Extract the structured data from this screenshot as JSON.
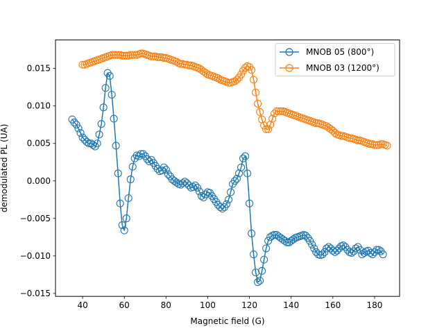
{
  "chart_data": {
    "type": "line",
    "title": "",
    "xlabel": "Magnetic field (G)",
    "ylabel": "demodulated PL (UA)",
    "xlim": [
      27,
      192
    ],
    "ylim": [
      -0.0154,
      0.0188
    ],
    "xticks": [
      40,
      60,
      80,
      100,
      120,
      140,
      160,
      180
    ],
    "xtick_labels": [
      "40",
      "60",
      "80",
      "100",
      "120",
      "140",
      "160",
      "180"
    ],
    "yticks": [
      -0.015,
      -0.01,
      -0.005,
      0.0,
      0.005,
      0.01,
      0.015
    ],
    "ytick_labels": [
      "−0.015",
      "−0.010",
      "−0.005",
      "0.000",
      "0.005",
      "0.010",
      "0.015"
    ],
    "grid": false,
    "legend_position": "top-right",
    "series": [
      {
        "name": "MNOB 05 (800°)",
        "color": "#1f77b4",
        "marker": "open-circle",
        "x": [
          35,
          36,
          37,
          38,
          39,
          40,
          41,
          42,
          43,
          44,
          45,
          46,
          47,
          48,
          49,
          50,
          51,
          52,
          53,
          54,
          55,
          56,
          57,
          58,
          59,
          60,
          61,
          62,
          63,
          64,
          65,
          66,
          67,
          68,
          69,
          70,
          71,
          72,
          73,
          74,
          75,
          76,
          77,
          78,
          79,
          80,
          81,
          82,
          83,
          84,
          85,
          86,
          87,
          88,
          89,
          90,
          91,
          92,
          93,
          94,
          95,
          96,
          97,
          98,
          99,
          100,
          101,
          102,
          103,
          104,
          105,
          106,
          107,
          108,
          109,
          110,
          111,
          112,
          113,
          114,
          115,
          116,
          117,
          118,
          119,
          120,
          121,
          122,
          123,
          124,
          125,
          126,
          127,
          128,
          129,
          130,
          131,
          132,
          133,
          134,
          135,
          136,
          137,
          138,
          139,
          140,
          141,
          142,
          143,
          144,
          145,
          146,
          147,
          148,
          149,
          150,
          151,
          152,
          153,
          154,
          155,
          156,
          157,
          158,
          159,
          160,
          161,
          162,
          163,
          164,
          165,
          166,
          167,
          168,
          169,
          170,
          171,
          172,
          173,
          174,
          175,
          176,
          177,
          178,
          179,
          180,
          181,
          182,
          183,
          184
        ],
        "y": [
          0.0082,
          0.0078,
          0.0075,
          0.007,
          0.0064,
          0.0058,
          0.0055,
          0.0052,
          0.005,
          0.005,
          0.0048,
          0.0046,
          0.005,
          0.0062,
          0.0076,
          0.0098,
          0.0124,
          0.0144,
          0.014,
          0.0115,
          0.0083,
          0.0047,
          0.001,
          -0.003,
          -0.0059,
          -0.0066,
          -0.005,
          -0.0023,
          0.0002,
          0.0019,
          0.003,
          0.0034,
          0.0033,
          0.0036,
          0.0036,
          0.0033,
          0.0029,
          0.0026,
          0.0028,
          0.0024,
          0.002,
          0.0016,
          0.0013,
          0.0014,
          0.0018,
          0.0015,
          0.0009,
          0.0006,
          0.0002,
          0.0,
          -0.0002,
          -0.0004,
          -0.0005,
          -0.0003,
          -0.0001,
          -0.0003,
          -0.0006,
          -0.0009,
          -0.0008,
          -0.0006,
          -0.0009,
          -0.0014,
          -0.002,
          -0.0022,
          -0.0018,
          -0.0015,
          -0.0016,
          -0.002,
          -0.0024,
          -0.0028,
          -0.0032,
          -0.0035,
          -0.0037,
          -0.0035,
          -0.0031,
          -0.0025,
          -0.0015,
          -0.0004,
          0.0,
          0.0003,
          0.001,
          0.0018,
          0.003,
          0.0033,
          0.001,
          -0.003,
          -0.007,
          -0.0098,
          -0.0122,
          -0.0135,
          -0.0133,
          -0.012,
          -0.0105,
          -0.009,
          -0.008,
          -0.0075,
          -0.0073,
          -0.0072,
          -0.0072,
          -0.0074,
          -0.0076,
          -0.0078,
          -0.008,
          -0.0082,
          -0.0082,
          -0.008,
          -0.0078,
          -0.0076,
          -0.0075,
          -0.0074,
          -0.0073,
          -0.0072,
          -0.0073,
          -0.0076,
          -0.008,
          -0.0085,
          -0.009,
          -0.0095,
          -0.0098,
          -0.0099,
          -0.0098,
          -0.0095,
          -0.009,
          -0.0088,
          -0.009,
          -0.0093,
          -0.0095,
          -0.0093,
          -0.009,
          -0.0087,
          -0.0086,
          -0.0088,
          -0.0092,
          -0.0095,
          -0.0096,
          -0.0094,
          -0.009,
          -0.0088,
          -0.0092,
          -0.0098,
          -0.0096,
          -0.0094,
          -0.0093,
          -0.0096,
          -0.0098,
          -0.0095,
          -0.0092,
          -0.0092,
          -0.0094,
          -0.0098
        ]
      },
      {
        "name": "MNOB 03 (1200°)",
        "color": "#ff7f0e",
        "marker": "open-circle",
        "x": [
          40,
          41,
          42,
          43,
          44,
          45,
          46,
          47,
          48,
          49,
          50,
          51,
          52,
          53,
          54,
          55,
          56,
          57,
          58,
          59,
          60,
          61,
          62,
          63,
          64,
          65,
          66,
          67,
          68,
          69,
          70,
          71,
          72,
          73,
          74,
          75,
          76,
          77,
          78,
          79,
          80,
          81,
          82,
          83,
          84,
          85,
          86,
          87,
          88,
          89,
          90,
          91,
          92,
          93,
          94,
          95,
          96,
          97,
          98,
          99,
          100,
          101,
          102,
          103,
          104,
          105,
          106,
          107,
          108,
          109,
          110,
          111,
          112,
          113,
          114,
          115,
          116,
          117,
          118,
          119,
          120,
          121,
          122,
          123,
          124,
          125,
          126,
          127,
          128,
          129,
          130,
          131,
          132,
          133,
          134,
          135,
          136,
          137,
          138,
          139,
          140,
          141,
          142,
          143,
          144,
          145,
          146,
          147,
          148,
          149,
          150,
          151,
          152,
          153,
          154,
          155,
          156,
          157,
          158,
          159,
          160,
          161,
          162,
          163,
          164,
          165,
          166,
          167,
          168,
          169,
          170,
          171,
          172,
          173,
          174,
          175,
          176,
          177,
          178,
          179,
          180,
          181,
          182,
          183,
          184,
          185,
          186
        ],
        "y": [
          0.0155,
          0.0155,
          0.0156,
          0.0157,
          0.0158,
          0.0159,
          0.016,
          0.0161,
          0.0162,
          0.0163,
          0.0164,
          0.0165,
          0.0166,
          0.0167,
          0.0168,
          0.0168,
          0.0168,
          0.0168,
          0.0168,
          0.0167,
          0.0167,
          0.0167,
          0.0167,
          0.0168,
          0.0168,
          0.0168,
          0.0168,
          0.0169,
          0.017,
          0.017,
          0.0169,
          0.0168,
          0.0167,
          0.0166,
          0.0166,
          0.0166,
          0.0165,
          0.0165,
          0.0165,
          0.0164,
          0.0164,
          0.0163,
          0.0162,
          0.0161,
          0.016,
          0.0159,
          0.0157,
          0.0156,
          0.0156,
          0.0155,
          0.0155,
          0.0154,
          0.0154,
          0.0153,
          0.0152,
          0.0151,
          0.015,
          0.0148,
          0.0146,
          0.0144,
          0.0142,
          0.0141,
          0.014,
          0.0139,
          0.0138,
          0.0137,
          0.0135,
          0.0134,
          0.0133,
          0.0132,
          0.0131,
          0.0131,
          0.0132,
          0.0133,
          0.0135,
          0.0138,
          0.0142,
          0.0147,
          0.0151,
          0.0153,
          0.0152,
          0.0148,
          0.0135,
          0.0118,
          0.0103,
          0.0092,
          0.0082,
          0.0074,
          0.0069,
          0.0069,
          0.0075,
          0.0083,
          0.009,
          0.0093,
          0.0093,
          0.0093,
          0.0093,
          0.0092,
          0.0091,
          0.009,
          0.0089,
          0.0088,
          0.0087,
          0.0086,
          0.0085,
          0.0084,
          0.0083,
          0.0082,
          0.0081,
          0.008,
          0.0079,
          0.0078,
          0.0077,
          0.0077,
          0.0076,
          0.0075,
          0.0074,
          0.0073,
          0.0071,
          0.0069,
          0.0067,
          0.0064,
          0.0062,
          0.0061,
          0.006,
          0.006,
          0.0059,
          0.0058,
          0.0057,
          0.0057,
          0.0056,
          0.0055,
          0.0054,
          0.0054,
          0.0053,
          0.0052,
          0.0051,
          0.005,
          0.0049,
          0.0049,
          0.0048,
          0.0048,
          0.0048,
          0.0049,
          0.0049,
          0.0048,
          0.0047
        ]
      }
    ]
  }
}
